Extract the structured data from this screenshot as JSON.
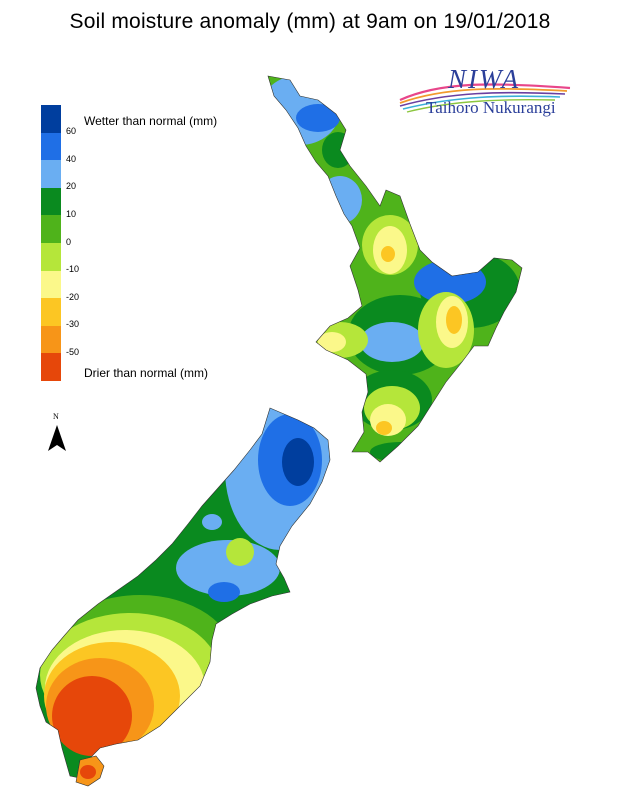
{
  "title": "Soil moisture anomaly (mm) at 9am on 19/01/2018",
  "logo": {
    "name": "NIWA",
    "subtitle": "Taihoro Nukurangi",
    "swoosh_colors": [
      "#e8468a",
      "#f29a2e",
      "#6a3fa0",
      "#3bb0d8",
      "#8cc63f"
    ]
  },
  "legend": {
    "top_label": "Wetter than normal (mm)",
    "bottom_label": "Drier than normal (mm)",
    "ticks": [
      "60",
      "40",
      "20",
      "10",
      "0",
      "-10",
      "-20",
      "-30",
      "-50"
    ],
    "colors": [
      "#003e9e",
      "#1f6fe6",
      "#6aaef2",
      "#0a8a1f",
      "#4fb31b",
      "#b5e63a",
      "#fbf88a",
      "#fcc623",
      "#f79518",
      "#e6470a"
    ]
  },
  "north": {
    "label": "N",
    "icon": "north-arrow-icon"
  },
  "map": {
    "subject": "New Zealand",
    "land_colors": {
      "wet_very": "#003e9e",
      "wet": "#1f6fe6",
      "wet_light": "#6aaef2",
      "green_dark": "#0a8a1f",
      "green": "#4fb31b",
      "yellow_green": "#b5e63a",
      "yellow": "#fbf88a",
      "amber": "#fcc623",
      "orange": "#f79518",
      "red": "#e6470a"
    }
  }
}
